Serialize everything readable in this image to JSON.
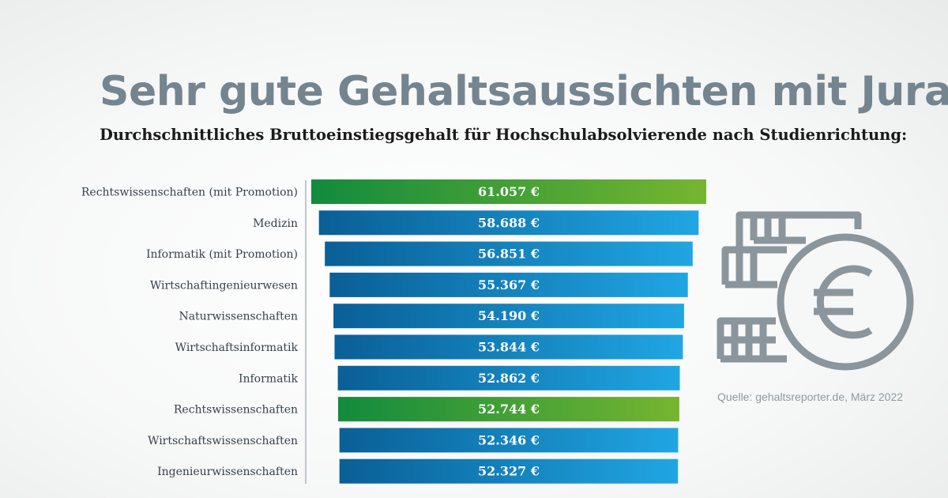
{
  "header": {
    "title": "Sehr gute Gehaltsaussichten mit Jura",
    "subtitle": "Durchschnittliches Bruttoeinstiegsgehalt für Hochschulabsolvierende nach Studienrichtung:"
  },
  "source": "Quelle: gehaltsreporter.de, März 2022",
  "icon": {
    "name": "money-euro-icon"
  },
  "colors": {
    "highlight": [
      "#128b3d",
      "#76b52f"
    ],
    "default": [
      "#0a5f96",
      "#20a6e3"
    ],
    "icon": "#8a969c",
    "axis": "#9aa3a8"
  },
  "chart_data": {
    "type": "bar",
    "orientation": "horizontal",
    "categories": [
      "Rechtswissenschaften (mit Promotion)",
      "Medizin",
      "Informatik (mit Promotion)",
      "Wirtschaftingenieurwesen",
      "Naturwissenschaften",
      "Wirtschaftsinformatik",
      "Informatik",
      "Rechtswissenschaften",
      "Wirtschaftswissenschaften",
      "Ingenieurwissenschaften"
    ],
    "values": [
      61057,
      58688,
      56851,
      55367,
      54190,
      53844,
      52862,
      52744,
      52346,
      52327
    ],
    "labels": [
      "61.057 €",
      "58.688 €",
      "56.851 €",
      "55.367 €",
      "54.190 €",
      "53.844 €",
      "52.862 €",
      "52.744 €",
      "52.346 €",
      "52.327 €"
    ],
    "highlighted": [
      true,
      false,
      false,
      false,
      false,
      false,
      false,
      true,
      false,
      false
    ],
    "layout": "centered",
    "title": "",
    "xlabel": "",
    "ylabel": "",
    "grid": false,
    "legend": false
  }
}
